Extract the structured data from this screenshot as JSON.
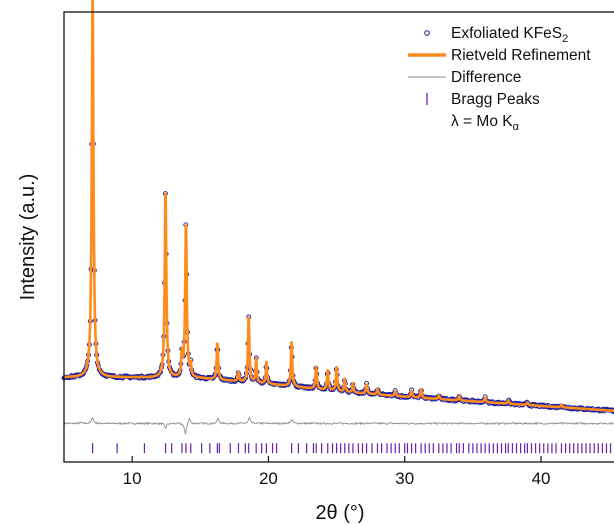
{
  "chart_data": {
    "type": "line",
    "xlabel": "2θ (°)",
    "ylabel": "Intensity (a.u.)",
    "xlim": [
      5,
      45.5
    ],
    "x_ticks": [
      10,
      20,
      30,
      40
    ],
    "y_ticks_shown": false,
    "grid": false,
    "legend_position": "top-right",
    "legend": [
      {
        "name": "Exfoliated KFeS",
        "sub": "2",
        "marker": "open-circle",
        "color": "#1f1f9e"
      },
      {
        "name": "Rietveld Refinement",
        "marker": "thick-line",
        "color": "#ff8c1a"
      },
      {
        "name": "Difference",
        "marker": "thin-line",
        "color": "#8c8c8c"
      },
      {
        "name": "Bragg Peaks",
        "marker": "vertical-bar",
        "color": "#6a1fb0"
      },
      {
        "name": "λ = Mo K",
        "sub": "α",
        "marker": "none"
      }
    ],
    "background": [
      [
        5,
        2.0
      ],
      [
        10,
        2.0
      ],
      [
        15,
        1.95
      ],
      [
        20,
        1.65
      ],
      [
        25,
        1.25
      ],
      [
        30,
        0.95
      ],
      [
        35,
        0.7
      ],
      [
        40,
        0.45
      ],
      [
        45.5,
        0.18
      ]
    ],
    "peaks": [
      {
        "x": 7.1,
        "h": 20.8,
        "w": 0.075
      },
      {
        "x": 12.45,
        "h": 10.2,
        "w": 0.07
      },
      {
        "x": 13.95,
        "h": 8.4,
        "w": 0.07
      },
      {
        "x": 13.65,
        "h": 1.2,
        "w": 0.05
      },
      {
        "x": 14.3,
        "h": 0.6,
        "w": 0.05
      },
      {
        "x": 16.25,
        "h": 2.0,
        "w": 0.06
      },
      {
        "x": 17.8,
        "h": 0.5,
        "w": 0.05
      },
      {
        "x": 18.55,
        "h": 3.6,
        "w": 0.06
      },
      {
        "x": 19.1,
        "h": 1.3,
        "w": 0.05
      },
      {
        "x": 19.85,
        "h": 1.2,
        "w": 0.05
      },
      {
        "x": 21.7,
        "h": 2.4,
        "w": 0.06
      },
      {
        "x": 23.5,
        "h": 1.2,
        "w": 0.06
      },
      {
        "x": 24.35,
        "h": 1.1,
        "w": 0.06
      },
      {
        "x": 25.0,
        "h": 1.3,
        "w": 0.06
      },
      {
        "x": 25.6,
        "h": 0.7,
        "w": 0.05
      },
      {
        "x": 26.2,
        "h": 0.5,
        "w": 0.05
      },
      {
        "x": 27.2,
        "h": 0.5,
        "w": 0.06
      },
      {
        "x": 28.0,
        "h": 0.3,
        "w": 0.06
      },
      {
        "x": 29.3,
        "h": 0.25,
        "w": 0.06
      },
      {
        "x": 30.5,
        "h": 0.35,
        "w": 0.06
      },
      {
        "x": 31.2,
        "h": 0.45,
        "w": 0.06
      },
      {
        "x": 32.5,
        "h": 0.2,
        "w": 0.06
      },
      {
        "x": 34.0,
        "h": 0.25,
        "w": 0.06
      },
      {
        "x": 35.9,
        "h": 0.25,
        "w": 0.06
      },
      {
        "x": 37.6,
        "h": 0.2,
        "w": 0.06
      },
      {
        "x": 39.0,
        "h": 0.15,
        "w": 0.06
      },
      {
        "x": 41.5,
        "h": 0.15,
        "w": 0.06
      }
    ],
    "difference_offset": -0.5,
    "difference_features": [
      [
        6.2,
        0.04
      ],
      [
        7.1,
        0.35
      ],
      [
        12.45,
        -0.25
      ],
      [
        13.9,
        -0.6
      ],
      [
        14.2,
        0.3
      ],
      [
        16.3,
        0.25
      ],
      [
        18.6,
        0.3
      ],
      [
        21.7,
        0.2
      ]
    ],
    "bragg_y": -1.85,
    "bragg_positions": [
      7.1,
      8.9,
      10.9,
      12.45,
      12.9,
      13.65,
      13.95,
      14.3,
      15.1,
      15.7,
      16.25,
      16.4,
      17.2,
      17.8,
      18.3,
      18.55,
      19.1,
      19.5,
      19.85,
      20.3,
      20.6,
      21.7,
      22.2,
      22.8,
      23.3,
      23.5,
      23.9,
      24.35,
      24.7,
      25.0,
      25.3,
      25.6,
      25.9,
      26.2,
      26.6,
      26.9,
      27.2,
      27.6,
      28.0,
      28.3,
      28.7,
      29.0,
      29.3,
      29.6,
      30.0,
      30.2,
      30.5,
      30.8,
      31.2,
      31.5,
      31.8,
      32.1,
      32.5,
      32.8,
      33.1,
      33.4,
      33.8,
      34.0,
      34.3,
      34.7,
      35.0,
      35.3,
      35.6,
      35.9,
      36.2,
      36.5,
      36.8,
      37.1,
      37.4,
      37.6,
      37.9,
      38.2,
      38.5,
      38.8,
      39.0,
      39.3,
      39.6,
      39.9,
      40.2,
      40.5,
      40.8,
      41.1,
      41.5,
      41.8,
      42.1,
      42.4,
      42.7,
      43.0,
      43.3,
      43.6,
      43.9,
      44.2,
      44.5,
      44.8,
      45.1,
      45.4
    ],
    "ylim_data": [
      -2.6,
      21.9
    ]
  }
}
